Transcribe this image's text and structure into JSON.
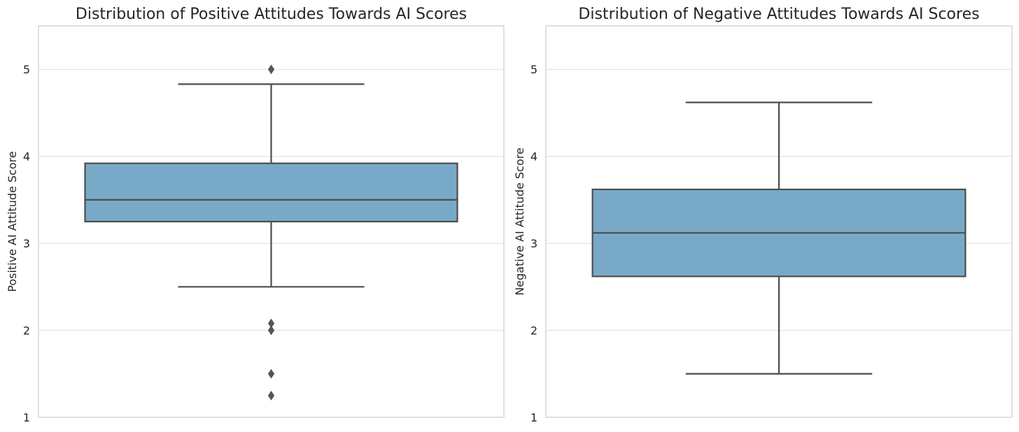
{
  "chart_data": [
    {
      "type": "box",
      "title": "Distribution of Positive Attitudes Towards AI Scores",
      "xlabel": "",
      "ylabel": "Positive AI Attitude Score",
      "ylim": [
        1,
        5.5
      ],
      "yticks": [
        1,
        2,
        3,
        4,
        5
      ],
      "grid": true,
      "color": "#78aac8",
      "box": {
        "whisker_low": 2.5,
        "q1": 3.25,
        "median": 3.5,
        "q3": 3.92,
        "whisker_high": 4.83
      },
      "outliers": [
        5.0,
        2.08,
        2.0,
        1.5,
        1.25
      ]
    },
    {
      "type": "box",
      "title": "Distribution of Negative Attitudes Towards AI Scores",
      "xlabel": "",
      "ylabel": "Negative AI Attitude Score",
      "ylim": [
        1,
        5.5
      ],
      "yticks": [
        1,
        2,
        3,
        4,
        5
      ],
      "grid": true,
      "color": "#78aac8",
      "box": {
        "whisker_low": 1.5,
        "q1": 2.62,
        "median": 3.12,
        "q3": 3.62,
        "whisker_high": 4.62
      },
      "outliers": []
    }
  ]
}
